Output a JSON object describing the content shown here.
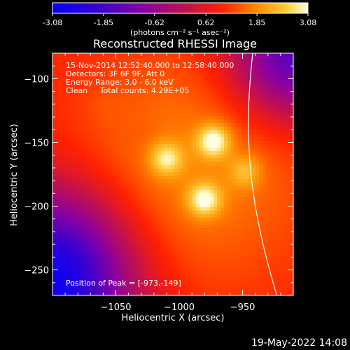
{
  "colorbar": {
    "ticks": [
      "-3.08",
      "-1.85",
      "-0.62",
      "0.62",
      "1.85",
      "3.08"
    ],
    "unit_label": "(photons cm⁻² s⁻¹ asec⁻²)"
  },
  "title": "Reconstructed RHESSI Image",
  "info": {
    "line1": "15-Nov-2014 12:52:40.000 to 12:58:40.000",
    "line2": "Detectors: 3F 6F 9F, Att 0",
    "line3": "Energy Range: 3.0 - 6.0 keV",
    "line4": "Clean     Total counts: 4.29E+05"
  },
  "peak_text": "Position of Peak = [-973,-149]",
  "footer_date": "19-May-2022 14:08",
  "chart_data": {
    "type": "heatmap",
    "xlabel": "Heliocentric X (arcsec)",
    "ylabel": "Heliocentric Y (arcsec)",
    "xlim": [
      -1100,
      -910
    ],
    "ylim": [
      -270,
      -80
    ],
    "x_ticks": [
      -1050,
      -1000,
      -950
    ],
    "x_tick_labels": [
      "-1050",
      "-1000",
      "-950"
    ],
    "y_ticks": [
      -250,
      -200,
      -150,
      -100
    ],
    "y_tick_labels": [
      "-250",
      "-200",
      "-150",
      "-100"
    ],
    "color_range": [
      -3.08,
      3.08
    ],
    "sources": [
      {
        "x": -973,
        "y": -149,
        "peak": 3.08
      },
      {
        "x": -1010,
        "y": -163,
        "peak": 2.7
      },
      {
        "x": -980,
        "y": -195,
        "peak": 3.0
      },
      {
        "x": -948,
        "y": -173,
        "peak": 2.2
      },
      {
        "x": -1060,
        "y": -122,
        "peak": 1.5
      },
      {
        "x": -1028,
        "y": -143,
        "peak": 1.3
      }
    ],
    "limb_curve": [
      [
        -942,
        -80
      ],
      [
        -950,
        -150
      ],
      [
        -944,
        -200
      ],
      [
        -923,
        -270
      ]
    ],
    "peak_position": [
      -973,
      -149
    ]
  }
}
